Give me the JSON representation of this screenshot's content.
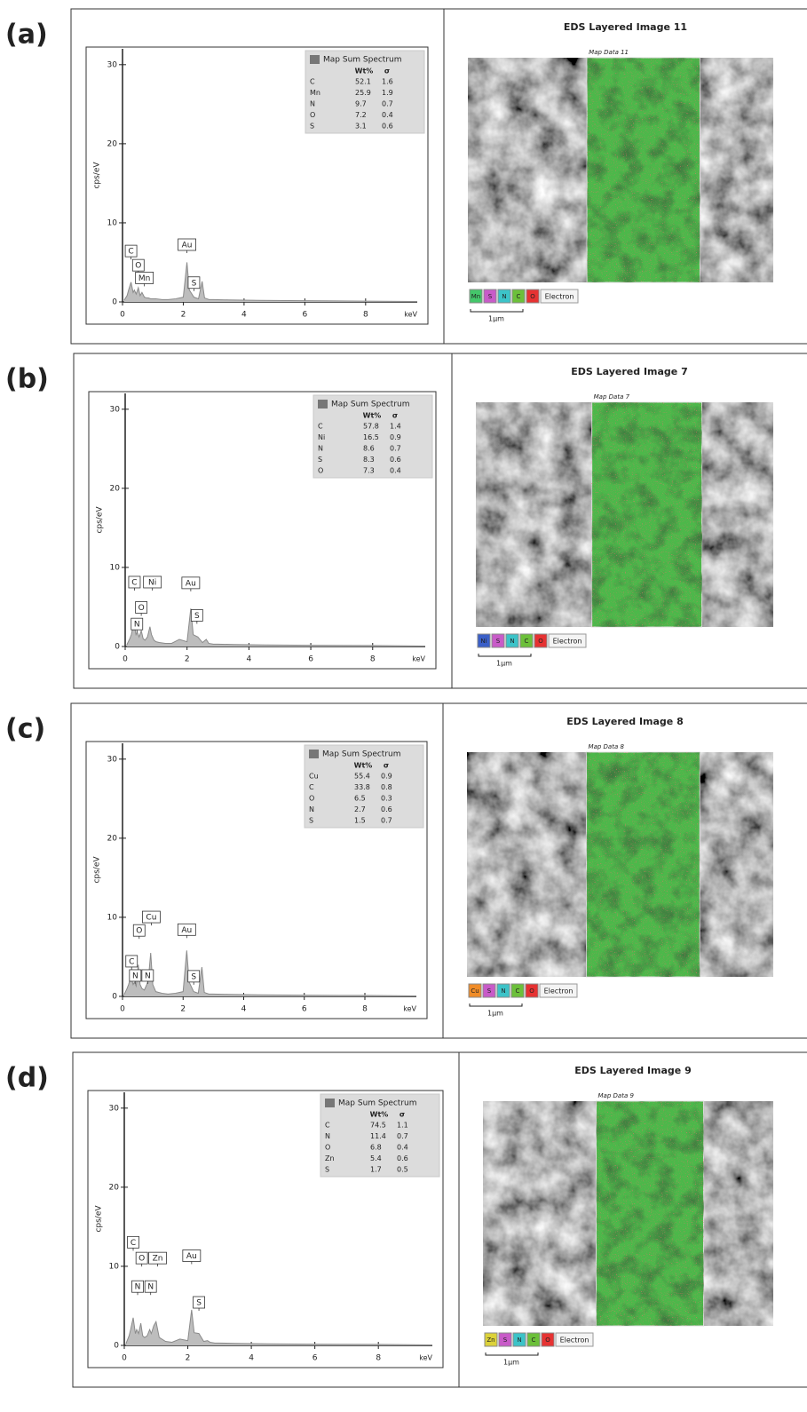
{
  "chart_data": [
    {
      "type": "line",
      "panel_label": "(a)",
      "x_label": "keV",
      "y_label": "cps/eV",
      "color": "#8a8a8a",
      "x": [
        0.05,
        0.15,
        0.2,
        0.28,
        0.35,
        0.39,
        0.45,
        0.52,
        0.58,
        0.64,
        0.72,
        0.8,
        0.85,
        0.93,
        1.0,
        1.1,
        1.3,
        1.5,
        1.75,
        2.0,
        2.12,
        2.2,
        2.35,
        2.5,
        2.62,
        2.7,
        2.85,
        3.0,
        3.5,
        4.5,
        6,
        8,
        9.7
      ],
      "values": [
        0.2,
        0.8,
        1.5,
        2.5,
        1.2,
        1.5,
        1.0,
        1.8,
        0.8,
        1.2,
        0.6,
        0.5,
        0.5,
        0.4,
        0.4,
        0.4,
        0.3,
        0.3,
        0.4,
        0.6,
        5.0,
        1.5,
        0.6,
        0.4,
        2.6,
        0.5,
        0.3,
        0.3,
        0.25,
        0.2,
        0.15,
        0.1,
        0.05
      ],
      "xlim": [
        0,
        9.7
      ],
      "ylim": [
        0,
        32
      ],
      "xticks": [
        0,
        2,
        4,
        6,
        8
      ],
      "yticks": [
        0,
        10,
        20,
        30
      ],
      "peak_labels": [
        {
          "text": "C",
          "x": 0.28,
          "y": 5.6
        },
        {
          "text": "O",
          "x": 0.52,
          "y": 3.8
        },
        {
          "text": "Mn",
          "x": 0.72,
          "y": 2.2
        },
        {
          "text": "Au",
          "x": 2.12,
          "y": 6.4
        },
        {
          "text": "S",
          "x": 2.35,
          "y": 1.6
        }
      ],
      "legend": {
        "title": "Map Sum Spectrum",
        "columns": [
          "Wt%",
          "σ"
        ],
        "rows": [
          {
            "element": "C",
            "wt": 52.1,
            "sigma": 1.6
          },
          {
            "element": "Mn",
            "wt": 25.9,
            "sigma": 1.9
          },
          {
            "element": "N",
            "wt": 9.7,
            "sigma": 0.7
          },
          {
            "element": "O",
            "wt": 7.2,
            "sigma": 0.4
          },
          {
            "element": "S",
            "wt": 3.1,
            "sigma": 0.6
          }
        ]
      },
      "image_title": "EDS Layered Image 11",
      "map_title": "Map Data 11",
      "map_elements": [
        {
          "name": "Mn",
          "color": "#44c66a"
        },
        {
          "name": "S",
          "color": "#c85bc8"
        },
        {
          "name": "N",
          "color": "#3cc3c8"
        },
        {
          "name": "C",
          "color": "#6cc03a"
        },
        {
          "name": "O",
          "color": "#e63232"
        }
      ],
      "electron_label": "Electron",
      "scale_label": "1µm"
    },
    {
      "type": "line",
      "panel_label": "(b)",
      "x_label": "keV",
      "y_label": "cps/eV",
      "color": "#8a8a8a",
      "x": [
        0.05,
        0.15,
        0.2,
        0.28,
        0.35,
        0.39,
        0.45,
        0.52,
        0.58,
        0.64,
        0.72,
        0.8,
        0.85,
        0.93,
        1.0,
        1.1,
        1.3,
        1.5,
        1.75,
        2.0,
        2.12,
        2.2,
        2.35,
        2.5,
        2.62,
        2.7,
        2.85,
        3.0,
        3.5,
        4.5,
        6,
        8,
        9.7
      ],
      "values": [
        0.2,
        1.0,
        1.5,
        3.0,
        1.5,
        1.8,
        1.2,
        2.0,
        1.0,
        0.8,
        1.2,
        2.5,
        1.5,
        0.8,
        0.6,
        0.5,
        0.4,
        0.4,
        0.9,
        0.6,
        4.8,
        1.5,
        1.2,
        0.5,
        0.9,
        0.4,
        0.3,
        0.3,
        0.25,
        0.2,
        0.15,
        0.12,
        0.05
      ],
      "xlim": [
        0,
        9.7
      ],
      "ylim": [
        0,
        32
      ],
      "xticks": [
        0,
        2,
        4,
        6,
        8
      ],
      "yticks": [
        0,
        10,
        20,
        30
      ],
      "peak_labels": [
        {
          "text": "C",
          "x": 0.3,
          "y": 7.3
        },
        {
          "text": "Ni",
          "x": 0.88,
          "y": 7.3
        },
        {
          "text": "O",
          "x": 0.52,
          "y": 4.1
        },
        {
          "text": "N",
          "x": 0.38,
          "y": 2.0
        },
        {
          "text": "Au",
          "x": 2.12,
          "y": 7.2
        },
        {
          "text": "S",
          "x": 2.32,
          "y": 3.1
        }
      ],
      "legend": {
        "title": "Map Sum Spectrum",
        "columns": [
          "Wt%",
          "σ"
        ],
        "rows": [
          {
            "element": "C",
            "wt": 57.8,
            "sigma": 1.4
          },
          {
            "element": "Ni",
            "wt": 16.5,
            "sigma": 0.9
          },
          {
            "element": "N",
            "wt": 8.6,
            "sigma": 0.7
          },
          {
            "element": "S",
            "wt": 8.3,
            "sigma": 0.6
          },
          {
            "element": "O",
            "wt": 7.3,
            "sigma": 0.4
          }
        ]
      },
      "image_title": "EDS Layered Image 7",
      "map_title": "Map Data 7",
      "map_elements": [
        {
          "name": "Ni",
          "color": "#3a5fc8"
        },
        {
          "name": "S",
          "color": "#c85bc8"
        },
        {
          "name": "N",
          "color": "#3cc3c8"
        },
        {
          "name": "C",
          "color": "#6cc03a"
        },
        {
          "name": "O",
          "color": "#e63232"
        }
      ],
      "electron_label": "Electron",
      "scale_label": "1µm"
    },
    {
      "type": "line",
      "panel_label": "(c)",
      "x_label": "keV",
      "y_label": "cps/eV",
      "color": "#8a8a8a",
      "x": [
        0.05,
        0.15,
        0.2,
        0.28,
        0.35,
        0.39,
        0.45,
        0.52,
        0.58,
        0.64,
        0.72,
        0.8,
        0.85,
        0.93,
        1.0,
        1.1,
        1.3,
        1.5,
        1.75,
        2.0,
        2.12,
        2.2,
        2.35,
        2.5,
        2.62,
        2.7,
        2.85,
        3.0,
        3.5,
        4.5,
        6,
        8,
        9.7
      ],
      "values": [
        0.2,
        1.0,
        1.5,
        2.5,
        1.5,
        1.8,
        1.3,
        4.0,
        1.5,
        1.0,
        0.8,
        1.5,
        2.0,
        5.5,
        1.5,
        0.6,
        0.4,
        0.3,
        0.4,
        0.6,
        5.8,
        1.8,
        0.6,
        0.4,
        3.7,
        0.5,
        0.3,
        0.3,
        0.25,
        0.2,
        0.15,
        0.12,
        0.05
      ],
      "xlim": [
        0,
        9.7
      ],
      "ylim": [
        0,
        32
      ],
      "xticks": [
        0,
        2,
        4,
        6,
        8
      ],
      "yticks": [
        0,
        10,
        20,
        30
      ],
      "peak_labels": [
        {
          "text": "Cu",
          "x": 0.95,
          "y": 9.2
        },
        {
          "text": "O",
          "x": 0.55,
          "y": 7.5
        },
        {
          "text": "C",
          "x": 0.3,
          "y": 3.6
        },
        {
          "text": "N",
          "x": 0.42,
          "y": 1.8
        },
        {
          "text": "N",
          "x": 0.83,
          "y": 1.8
        },
        {
          "text": "Au",
          "x": 2.12,
          "y": 7.6
        },
        {
          "text": "S",
          "x": 2.35,
          "y": 1.7
        }
      ],
      "legend": {
        "title": "Map Sum Spectrum",
        "columns": [
          "Wt%",
          "σ"
        ],
        "rows": [
          {
            "element": "Cu",
            "wt": 55.4,
            "sigma": 0.9
          },
          {
            "element": "C",
            "wt": 33.8,
            "sigma": 0.8
          },
          {
            "element": "O",
            "wt": 6.5,
            "sigma": 0.3
          },
          {
            "element": "N",
            "wt": 2.7,
            "sigma": 0.6
          },
          {
            "element": "S",
            "wt": 1.5,
            "sigma": 0.7
          }
        ]
      },
      "image_title": "EDS Layered Image 8",
      "map_title": "Map Data 8",
      "map_elements": [
        {
          "name": "Cu",
          "color": "#f08c28"
        },
        {
          "name": "S",
          "color": "#c85bc8"
        },
        {
          "name": "N",
          "color": "#3cc3c8"
        },
        {
          "name": "C",
          "color": "#6cc03a"
        },
        {
          "name": "O",
          "color": "#e63232"
        }
      ],
      "electron_label": "Electron",
      "scale_label": "1µm"
    },
    {
      "type": "line",
      "panel_label": "(d)",
      "x_label": "keV",
      "y_label": "cps/eV",
      "color": "#8a8a8a",
      "x": [
        0.05,
        0.15,
        0.2,
        0.28,
        0.35,
        0.39,
        0.45,
        0.52,
        0.58,
        0.64,
        0.72,
        0.8,
        0.85,
        0.93,
        1.0,
        1.1,
        1.3,
        1.5,
        1.75,
        2.0,
        2.12,
        2.2,
        2.35,
        2.5,
        2.62,
        2.7,
        2.85,
        3.0,
        3.5,
        4.5,
        6,
        8,
        9.7
      ],
      "values": [
        0.2,
        1.2,
        2.0,
        3.5,
        1.5,
        2.0,
        1.5,
        2.8,
        1.2,
        1.0,
        1.2,
        2.0,
        1.5,
        2.5,
        3.0,
        1.0,
        0.5,
        0.4,
        0.8,
        0.6,
        4.5,
        1.6,
        1.5,
        0.5,
        0.6,
        0.4,
        0.3,
        0.3,
        0.25,
        0.2,
        0.15,
        0.12,
        0.05
      ],
      "xlim": [
        0,
        9.7
      ],
      "ylim": [
        0,
        32
      ],
      "xticks": [
        0,
        2,
        4,
        6,
        8
      ],
      "yticks": [
        0,
        10,
        20,
        30
      ],
      "peak_labels": [
        {
          "text": "C",
          "x": 0.28,
          "y": 12.2
        },
        {
          "text": "O",
          "x": 0.55,
          "y": 10.2
        },
        {
          "text": "Zn",
          "x": 1.05,
          "y": 10.2
        },
        {
          "text": "N",
          "x": 0.42,
          "y": 6.6
        },
        {
          "text": "N",
          "x": 0.83,
          "y": 6.6
        },
        {
          "text": "Au",
          "x": 2.12,
          "y": 10.5
        },
        {
          "text": "S",
          "x": 2.35,
          "y": 4.6
        }
      ],
      "legend": {
        "title": "Map Sum Spectrum",
        "columns": [
          "Wt%",
          "σ"
        ],
        "rows": [
          {
            "element": "C",
            "wt": 74.5,
            "sigma": 1.1
          },
          {
            "element": "N",
            "wt": 11.4,
            "sigma": 0.7
          },
          {
            "element": "O",
            "wt": 6.8,
            "sigma": 0.4
          },
          {
            "element": "Zn",
            "wt": 5.4,
            "sigma": 0.6
          },
          {
            "element": "S",
            "wt": 1.7,
            "sigma": 0.5
          }
        ]
      },
      "image_title": "EDS Layered Image 9",
      "map_title": "Map Data 9",
      "map_elements": [
        {
          "name": "Zn",
          "color": "#dcd23a"
        },
        {
          "name": "S",
          "color": "#c85bc8"
        },
        {
          "name": "N",
          "color": "#3cc3c8"
        },
        {
          "name": "C",
          "color": "#6cc03a"
        },
        {
          "name": "O",
          "color": "#e63232"
        }
      ],
      "electron_label": "Electron",
      "scale_label": "1µm"
    }
  ]
}
